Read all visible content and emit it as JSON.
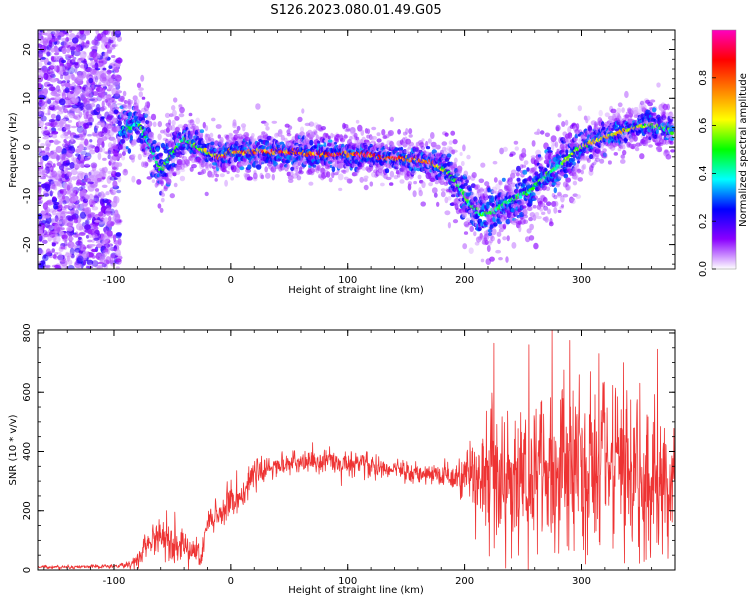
{
  "title": "S126.2023.080.01.49.G05",
  "chart_data": [
    {
      "type": "heatmap",
      "xlabel": "Height of straight line (km)",
      "ylabel": "Frequency (Hz)",
      "xlim": [
        -165,
        380
      ],
      "ylim": [
        -25,
        24
      ],
      "x_ticks": [
        "-100",
        "0",
        "100",
        "200",
        "300"
      ],
      "y_ticks": [
        "-20",
        "-10",
        "0",
        "10",
        "20"
      ],
      "colorbar": {
        "label": "Normalized spectral amplitude",
        "range": [
          0,
          1
        ],
        "ticks": [
          "0.0",
          "0.2",
          "0.4",
          "0.6",
          "0.8"
        ],
        "colormap": [
          "#ffffff",
          "#8a00ff",
          "#0000ff",
          "#00ffff",
          "#00ff00",
          "#ffff00",
          "#ff8000",
          "#ff0000",
          "#ff00c0"
        ]
      },
      "noise_region_x": [
        -165,
        -95
      ],
      "ridge": {
        "x": [
          -95,
          -80,
          -70,
          -60,
          -50,
          -40,
          -30,
          -20,
          -10,
          0,
          20,
          50,
          80,
          110,
          130,
          150,
          170,
          185,
          195,
          205,
          215,
          225,
          240,
          255,
          270,
          285,
          300,
          320,
          340,
          355,
          370,
          378
        ],
        "y": [
          3,
          5,
          1,
          -5,
          -1,
          2,
          0,
          -1,
          -2,
          -1,
          -1,
          -1,
          -1.5,
          -1.5,
          -2,
          -2.5,
          -3,
          -5,
          -8,
          -12,
          -14,
          -13,
          -11,
          -9,
          -6,
          -3,
          0,
          2,
          3.5,
          4.5,
          4,
          3
        ],
        "amplitude": [
          0.4,
          0.5,
          0.5,
          0.5,
          0.5,
          0.5,
          0.55,
          0.7,
          0.8,
          0.8,
          0.8,
          0.85,
          0.85,
          0.9,
          0.85,
          0.85,
          0.8,
          0.6,
          0.5,
          0.5,
          0.5,
          0.5,
          0.5,
          0.5,
          0.5,
          0.55,
          0.65,
          0.7,
          0.7,
          0.6,
          0.5,
          0.5
        ]
      }
    },
    {
      "type": "line",
      "xlabel": "Height of straight line (km)",
      "ylabel": "SNR (10 * v/v)",
      "xlim": [
        -165,
        380
      ],
      "ylim": [
        0,
        810
      ],
      "x_ticks": [
        "-100",
        "0",
        "100",
        "200",
        "300"
      ],
      "y_ticks": [
        "0",
        "200",
        "400",
        "600",
        "800"
      ],
      "color": "#ee3333",
      "envelope": {
        "x": [
          -165,
          -100,
          -85,
          -75,
          -65,
          -55,
          -45,
          -35,
          -25,
          -20,
          -10,
          0,
          10,
          20,
          35,
          50,
          70,
          90,
          110,
          130,
          150,
          170,
          190,
          205,
          215,
          225,
          240,
          260,
          280,
          300,
          320,
          340,
          360,
          378
        ],
        "mean": [
          10,
          12,
          20,
          60,
          110,
          110,
          90,
          70,
          40,
          150,
          190,
          230,
          260,
          320,
          350,
          360,
          360,
          365,
          360,
          340,
          330,
          320,
          320,
          330,
          330,
          320,
          320,
          330,
          330,
          320,
          320,
          300,
          300,
          300
        ],
        "spread": [
          5,
          6,
          15,
          40,
          55,
          60,
          50,
          50,
          40,
          50,
          60,
          60,
          50,
          40,
          30,
          30,
          40,
          40,
          40,
          30,
          30,
          30,
          50,
          110,
          170,
          200,
          230,
          250,
          270,
          270,
          250,
          230,
          220,
          200
        ]
      },
      "peaks": [
        [
          -55,
          200
        ],
        [
          -48,
          195
        ],
        [
          5,
          335
        ],
        [
          70,
          430
        ],
        [
          80,
          405
        ],
        [
          103,
          400
        ],
        [
          225,
          765
        ],
        [
          255,
          760
        ],
        [
          275,
          810
        ],
        [
          285,
          675
        ],
        [
          290,
          775
        ],
        [
          315,
          730
        ],
        [
          336,
          700
        ],
        [
          350,
          630
        ],
        [
          365,
          745
        ]
      ]
    }
  ]
}
